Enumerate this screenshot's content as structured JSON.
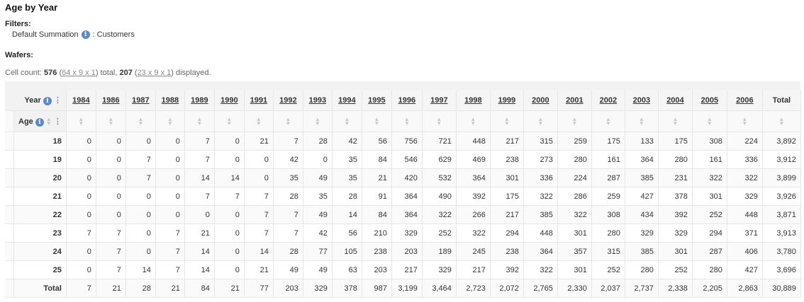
{
  "title": "Age by Year",
  "filters_label": "Filters:",
  "filter": {
    "name": "Default Summation",
    "value": ": Customers"
  },
  "wafers_label": "Wafers:",
  "cell_count": {
    "prefix": "Cell count: ",
    "total": "576",
    "total_dims": "64 x 9 x 1",
    "mid": " total, ",
    "displayed": "207",
    "displayed_dims": "23 x 9 x 1",
    "suffix": " displayed."
  },
  "table": {
    "col_dim": "Year",
    "row_dim": "Age",
    "total_label": "Total",
    "years": [
      "1984",
      "1986",
      "1987",
      "1988",
      "1989",
      "1990",
      "1991",
      "1992",
      "1993",
      "1994",
      "1995",
      "1996",
      "1997",
      "1998",
      "1999",
      "2000",
      "2001",
      "2002",
      "2003",
      "2004",
      "2005",
      "2006"
    ],
    "rows": [
      {
        "age": "18",
        "values": [
          "0",
          "0",
          "0",
          "0",
          "7",
          "0",
          "21",
          "7",
          "28",
          "42",
          "56",
          "756",
          "721",
          "448",
          "217",
          "315",
          "259",
          "175",
          "133",
          "175",
          "308",
          "224",
          "3,892"
        ]
      },
      {
        "age": "19",
        "values": [
          "0",
          "0",
          "7",
          "0",
          "7",
          "0",
          "0",
          "42",
          "0",
          "35",
          "84",
          "546",
          "629",
          "469",
          "238",
          "273",
          "280",
          "161",
          "364",
          "280",
          "161",
          "336",
          "3,912"
        ]
      },
      {
        "age": "20",
        "values": [
          "0",
          "0",
          "7",
          "0",
          "14",
          "14",
          "0",
          "35",
          "49",
          "35",
          "21",
          "420",
          "532",
          "364",
          "301",
          "336",
          "224",
          "287",
          "385",
          "231",
          "322",
          "322",
          "3,899"
        ]
      },
      {
        "age": "21",
        "values": [
          "0",
          "0",
          "0",
          "0",
          "7",
          "7",
          "7",
          "28",
          "35",
          "28",
          "91",
          "364",
          "490",
          "392",
          "175",
          "322",
          "286",
          "259",
          "427",
          "378",
          "301",
          "329",
          "3,926"
        ]
      },
      {
        "age": "22",
        "values": [
          "0",
          "0",
          "0",
          "0",
          "0",
          "0",
          "7",
          "7",
          "49",
          "14",
          "84",
          "364",
          "322",
          "266",
          "217",
          "385",
          "322",
          "308",
          "434",
          "392",
          "252",
          "448",
          "3,871"
        ]
      },
      {
        "age": "23",
        "values": [
          "7",
          "7",
          "0",
          "7",
          "21",
          "0",
          "7",
          "7",
          "42",
          "56",
          "210",
          "329",
          "252",
          "322",
          "294",
          "448",
          "301",
          "280",
          "329",
          "329",
          "294",
          "371",
          "3,913"
        ]
      },
      {
        "age": "24",
        "values": [
          "0",
          "7",
          "0",
          "7",
          "14",
          "0",
          "14",
          "28",
          "77",
          "105",
          "238",
          "203",
          "189",
          "245",
          "238",
          "364",
          "357",
          "315",
          "385",
          "301",
          "287",
          "406",
          "3,780"
        ]
      },
      {
        "age": "25",
        "values": [
          "0",
          "7",
          "14",
          "7",
          "14",
          "0",
          "21",
          "49",
          "49",
          "63",
          "203",
          "217",
          "329",
          "217",
          "392",
          "322",
          "301",
          "252",
          "280",
          "252",
          "280",
          "427",
          "3,696"
        ]
      },
      {
        "age": "Total",
        "values": [
          "7",
          "21",
          "28",
          "21",
          "84",
          "21",
          "77",
          "203",
          "329",
          "378",
          "987",
          "3,199",
          "3,464",
          "2,723",
          "2,072",
          "2,765",
          "2,330",
          "2,037",
          "2,737",
          "2,338",
          "2,205",
          "2,863",
          "30,889"
        ]
      }
    ]
  },
  "colors": {
    "info": "#5b8ac7",
    "header_bg": "#f5f5f5",
    "stripe": "#fafafa"
  }
}
